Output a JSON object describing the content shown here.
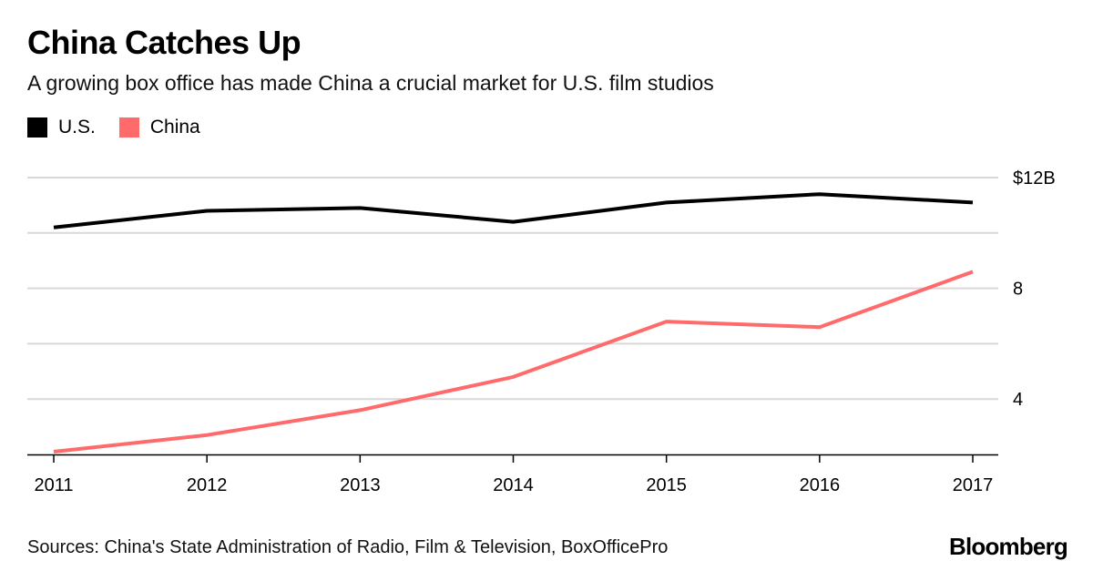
{
  "title": "China Catches Up",
  "subtitle": "A growing box office has made China a crucial market for U.S. film studios",
  "legend": [
    {
      "label": "U.S.",
      "color": "#000000"
    },
    {
      "label": "China",
      "color": "#ff6b6b"
    }
  ],
  "source": "Sources: China's State Administration of Radio, Film & Television, BoxOfficePro",
  "brand": "Bloomberg",
  "chart_data": {
    "type": "line",
    "x": [
      2011,
      2012,
      2013,
      2014,
      2015,
      2016,
      2017
    ],
    "series": [
      {
        "name": "U.S.",
        "color": "#000000",
        "values": [
          10.2,
          10.8,
          10.9,
          10.4,
          11.1,
          11.4,
          11.1
        ]
      },
      {
        "name": "China",
        "color": "#ff6b6b",
        "values": [
          2.1,
          2.7,
          3.6,
          4.8,
          6.8,
          6.6,
          8.6
        ]
      }
    ],
    "ylim": [
      2,
      12
    ],
    "yticks": [
      4,
      8,
      12
    ],
    "ytick_labels": [
      "4",
      "8",
      "$12B"
    ],
    "xtick_labels": [
      "2011",
      "2012",
      "2013",
      "2014",
      "2015",
      "2016",
      "2017"
    ],
    "grid": true,
    "legend_position": "top-left"
  }
}
